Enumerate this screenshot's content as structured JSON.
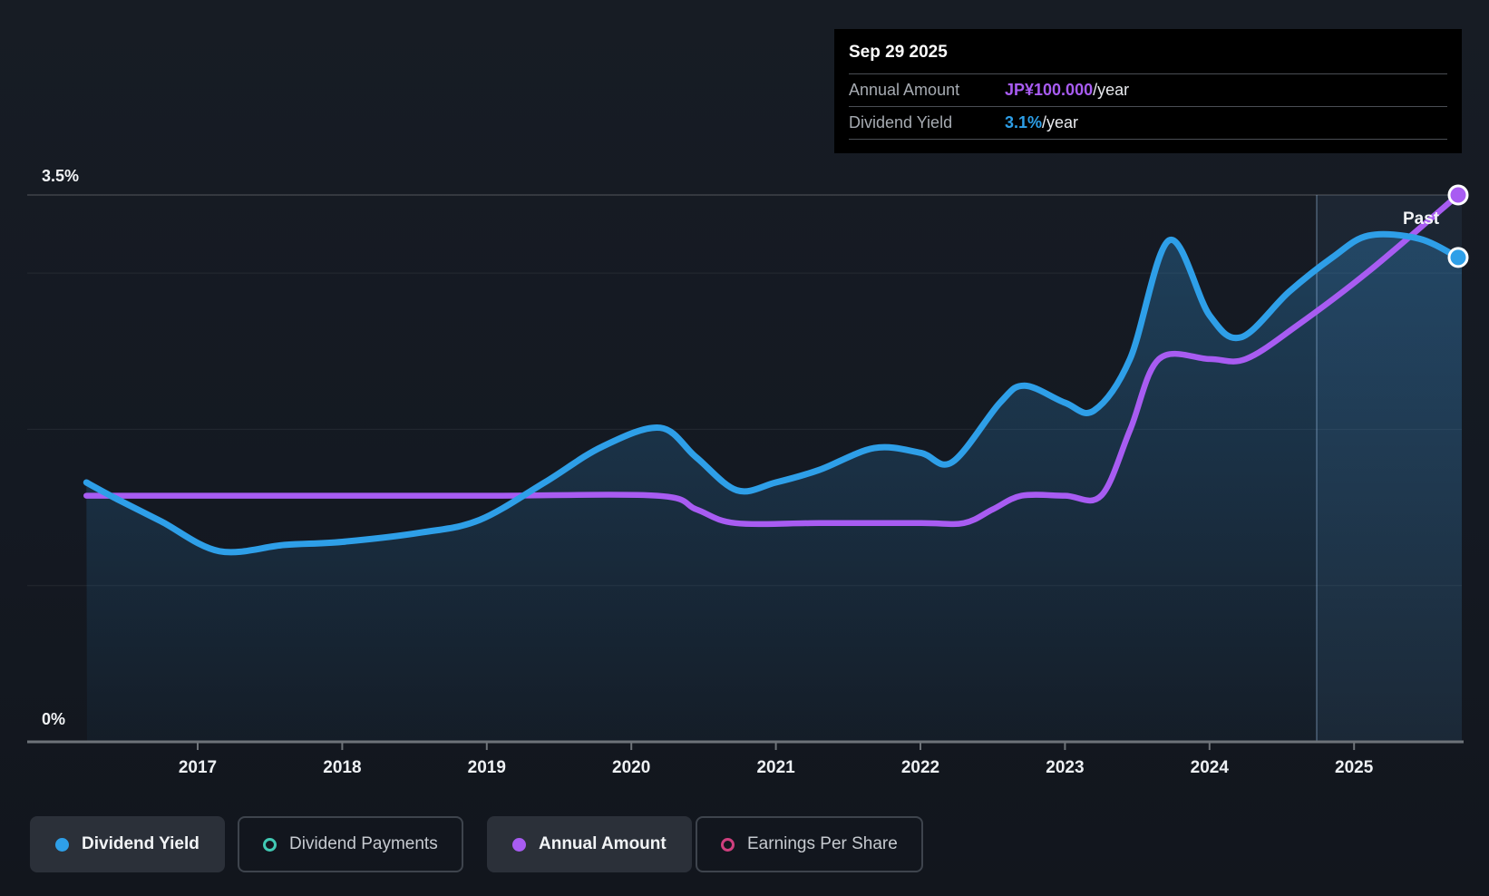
{
  "tooltip": {
    "date": "Sep 29 2025",
    "rows": [
      {
        "label": "Annual Amount",
        "value": "JP¥100.000",
        "suffix": "/year",
        "color": "#a85cf2"
      },
      {
        "label": "Dividend Yield",
        "value": "3.1%",
        "suffix": "/year",
        "color": "#2d9fe8"
      }
    ]
  },
  "annotations": {
    "past_label": "Past"
  },
  "axes": {
    "y_top_label": "3.5%",
    "y_bottom_label": "0%",
    "x_tick_labels": [
      "2017",
      "2018",
      "2019",
      "2020",
      "2021",
      "2022",
      "2023",
      "2024",
      "2025"
    ]
  },
  "legend": [
    {
      "label": "Dividend Yield",
      "marker": "dot",
      "color": "#2e9fe8",
      "active": true
    },
    {
      "label": "Dividend Payments",
      "marker": "ring",
      "color": "#41c9b4",
      "active": false
    },
    {
      "label": "Annual Amount",
      "marker": "dot",
      "color": "#a85cf2",
      "active": true
    },
    {
      "label": "Earnings Per Share",
      "marker": "ring",
      "color": "#cf3f7e",
      "active": false
    }
  ],
  "chart_data": {
    "type": "area",
    "title": "Dividend history and forecast",
    "x_domain": [
      2016.23,
      2025.72
    ],
    "x_ticks": [
      2017,
      2018,
      2019,
      2020,
      2021,
      2022,
      2023,
      2024,
      2025
    ],
    "y_axis": {
      "unit": "%",
      "min": 0,
      "max": 3.5,
      "gridline_values": [
        3.5,
        3.0,
        2.0,
        1.0
      ],
      "top_label_value": 3.5,
      "bottom_label_value": 0
    },
    "highlight_band": {
      "x_start": 2024.74,
      "x_end": 2025.75,
      "note": "hovered trailing-twelve-month region with crosshair"
    },
    "series": [
      {
        "name": "Dividend Yield",
        "unit": "%",
        "color": "#2e9fe8",
        "fill": true,
        "end_marker": true,
        "points": [
          [
            2016.23,
            1.66
          ],
          [
            2016.45,
            1.55
          ],
          [
            2016.75,
            1.41
          ],
          [
            2017.15,
            1.22
          ],
          [
            2017.6,
            1.26
          ],
          [
            2018.0,
            1.28
          ],
          [
            2018.55,
            1.34
          ],
          [
            2018.95,
            1.42
          ],
          [
            2019.4,
            1.66
          ],
          [
            2019.8,
            1.89
          ],
          [
            2020.2,
            2.01
          ],
          [
            2020.45,
            1.82
          ],
          [
            2020.73,
            1.61
          ],
          [
            2021.0,
            1.66
          ],
          [
            2021.3,
            1.74
          ],
          [
            2021.68,
            1.88
          ],
          [
            2022.0,
            1.85
          ],
          [
            2022.22,
            1.79
          ],
          [
            2022.55,
            2.17
          ],
          [
            2022.72,
            2.28
          ],
          [
            2023.0,
            2.17
          ],
          [
            2023.2,
            2.12
          ],
          [
            2023.45,
            2.45
          ],
          [
            2023.72,
            3.21
          ],
          [
            2024.0,
            2.73
          ],
          [
            2024.22,
            2.59
          ],
          [
            2024.55,
            2.88
          ],
          [
            2024.85,
            3.1
          ],
          [
            2025.1,
            3.24
          ],
          [
            2025.45,
            3.22
          ],
          [
            2025.72,
            3.1
          ]
        ]
      },
      {
        "name": "Annual Amount",
        "unit": "JP¥",
        "color": "#a85cf2",
        "fill": false,
        "end_marker": true,
        "scale_anchor": {
          "value": 100,
          "aligns_with_pct": 3.5
        },
        "points": [
          [
            2016.23,
            45
          ],
          [
            2017.0,
            45
          ],
          [
            2018.0,
            45
          ],
          [
            2019.0,
            45
          ],
          [
            2020.18,
            45
          ],
          [
            2020.45,
            42.5
          ],
          [
            2020.72,
            40
          ],
          [
            2021.3,
            40
          ],
          [
            2022.0,
            40
          ],
          [
            2022.3,
            40
          ],
          [
            2022.5,
            42.5
          ],
          [
            2022.7,
            45
          ],
          [
            2023.0,
            45
          ],
          [
            2023.25,
            45
          ],
          [
            2023.45,
            57
          ],
          [
            2023.65,
            70
          ],
          [
            2024.0,
            70
          ],
          [
            2024.25,
            70
          ],
          [
            2024.6,
            76
          ],
          [
            2025.1,
            86
          ],
          [
            2025.72,
            100
          ]
        ]
      }
    ],
    "legend_only_series": [
      "Dividend Payments",
      "Earnings Per Share"
    ],
    "grid": true,
    "legend_position": "bottom"
  },
  "colors": {
    "background": "#151a22",
    "tooltip_bg": "#000000",
    "dividend_yield": "#2e9fe8",
    "annual_amount": "#a85cf2",
    "dividend_payments": "#41c9b4",
    "earnings_per_share": "#cf3f7e",
    "axis_line": "#6e7379",
    "gridline_strong": "rgba(255,255,255,0.18)",
    "gridline_faint": "rgba(255,255,255,0.07)"
  }
}
